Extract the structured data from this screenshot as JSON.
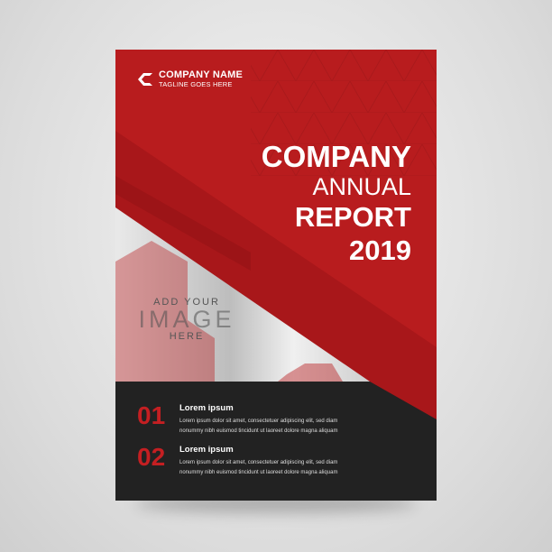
{
  "cover": {
    "company_name": "COMPANY NAME",
    "tagline": "TAGLINE GOES HERE",
    "title": [
      "COMPANY",
      "ANNUAL",
      "REPORT",
      "2019"
    ],
    "image_placeholder": [
      "ADD YOUR",
      "IMAGE",
      "HERE"
    ],
    "items": [
      {
        "number": "01",
        "heading": "Lorem ipsum",
        "body": [
          "Lorem ipsum dolor sit amet, consectetuer adipiscing elit, sed diam",
          "nonummy nibh euismod tincidunt ut laoreet dolore magna aliquam"
        ]
      },
      {
        "number": "02",
        "heading": "Lorem ipsum",
        "body": [
          "Lorem ipsum dolor sit amet, consectetuer adipiscing elit, sed diam",
          "nonummy nibh euismod tincidunt ut laoreet dolore magna aliquam"
        ]
      }
    ],
    "colors": {
      "red": "#b81c1e",
      "dark": "#222222",
      "accent_number": "#c41f22"
    }
  }
}
